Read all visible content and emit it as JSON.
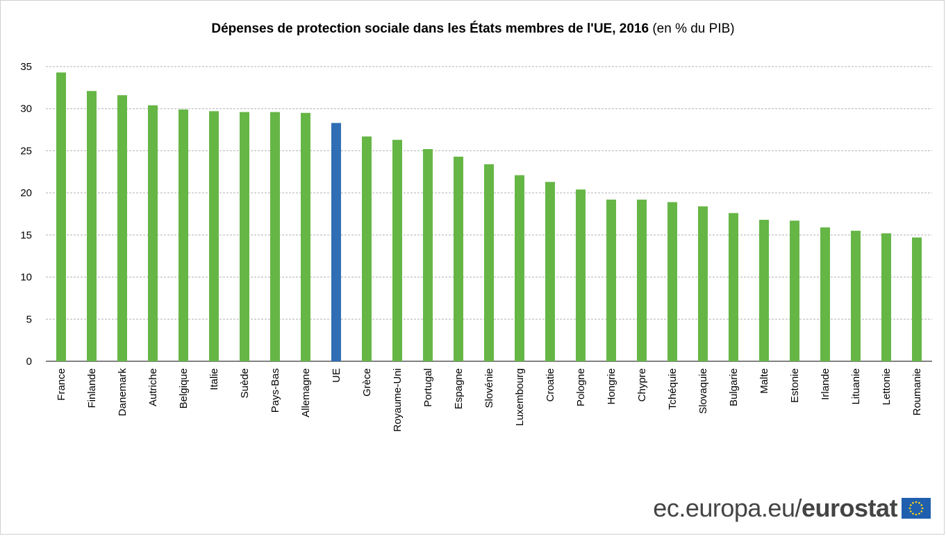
{
  "title": {
    "main": "Dépenses de protection sociale dans les États membres de l'UE, 2016",
    "suffix": "(en % du PIB)"
  },
  "logo": {
    "site_text": "ec.europa.eu/",
    "brand_text": "eurostat",
    "flag_icon": "eu-flag-icon"
  },
  "colors": {
    "member": "#66b646",
    "eu": "#2f6db4",
    "grid": "#b0b0b0"
  },
  "chart_data": {
    "type": "bar",
    "ylim": [
      0,
      35
    ],
    "yticks": [
      0,
      5,
      10,
      15,
      20,
      25,
      30,
      35
    ],
    "grid": true,
    "highlight": "UE",
    "categories": [
      "France",
      "Finlande",
      "Danemark",
      "Autriche",
      "Belgique",
      "Italie",
      "Suède",
      "Pays-Bas",
      "Allemagne",
      "UE",
      "Grèce",
      "Royaume-Uni",
      "Portugal",
      "Espagne",
      "Slovénie",
      "Luxembourg",
      "Croatie",
      "Pologne",
      "Hongrie",
      "Chypre",
      "Tchéquie",
      "Slovaquie",
      "Bulgarie",
      "Malte",
      "Estonie",
      "Irlande",
      "Lituanie",
      "Lettonie",
      "Roumanie"
    ],
    "values": [
      34.3,
      32.1,
      31.6,
      30.4,
      29.9,
      29.7,
      29.6,
      29.6,
      29.5,
      28.3,
      26.7,
      26.3,
      25.2,
      24.3,
      23.4,
      22.1,
      21.3,
      20.4,
      19.2,
      19.2,
      18.9,
      18.4,
      17.6,
      16.8,
      16.7,
      15.9,
      15.5,
      15.2,
      14.7
    ]
  }
}
